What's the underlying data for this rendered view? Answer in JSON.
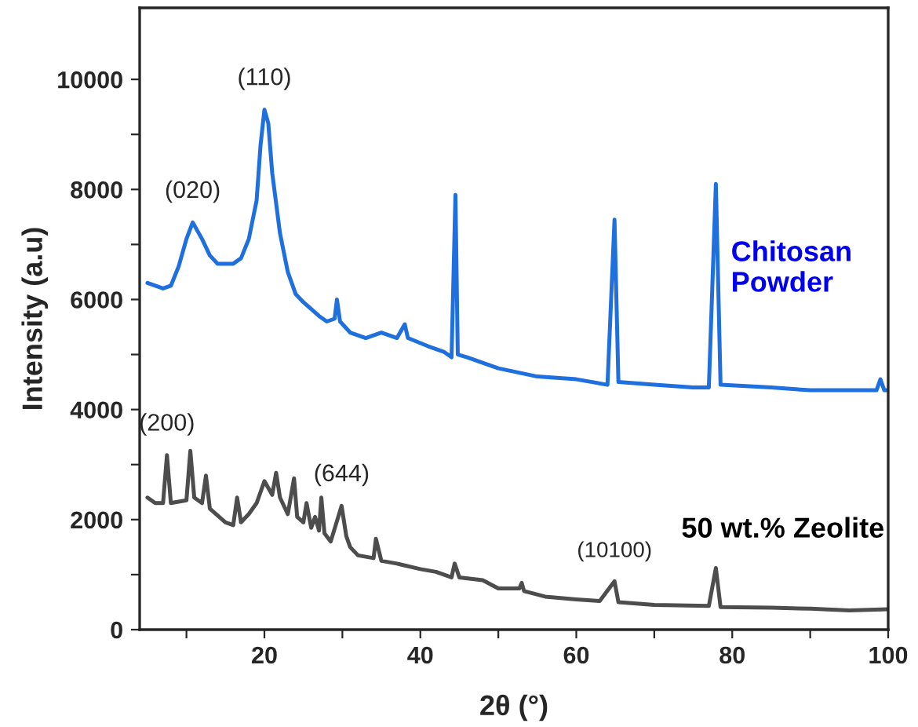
{
  "chart_data": {
    "type": "line",
    "xlabel": "2θ (°)",
    "ylabel": "Intensity (a.u)",
    "xlim": [
      4,
      100
    ],
    "ylim": [
      0,
      11300
    ],
    "xticks": [
      {
        "value": 10,
        "label": null
      },
      20,
      {
        "value": 30,
        "label": null
      },
      40,
      {
        "value": 50,
        "label": null
      },
      60,
      {
        "value": 70,
        "label": null
      },
      80,
      {
        "value": 90,
        "label": null
      },
      100
    ],
    "yticks": [
      0,
      {
        "value": 1000,
        "label": null
      },
      2000,
      {
        "value": 3000,
        "label": null
      },
      4000,
      {
        "value": 5000,
        "label": null
      },
      6000,
      {
        "value": 7000,
        "label": null
      },
      8000,
      {
        "value": 9000,
        "label": null
      },
      10000
    ],
    "grid": false,
    "legend": false,
    "marker": "none",
    "line_style": "solid",
    "series": [
      {
        "name": "Chitosan Powder",
        "color": "#1f6fdf",
        "x": [
          5,
          7,
          8,
          9,
          10,
          10.8,
          12,
          13,
          14,
          16,
          17,
          18,
          19,
          19.5,
          20,
          20.5,
          21,
          22,
          23,
          24,
          25,
          27,
          28,
          29,
          29.3,
          29.7,
          31,
          33,
          35,
          37,
          38,
          38.4,
          41,
          43,
          44,
          44.5,
          44.8,
          46,
          50,
          55,
          60,
          64,
          64.9,
          65.4,
          70,
          75,
          77,
          77.9,
          78.5,
          85,
          90,
          95,
          98.5,
          99,
          99.5,
          100
        ],
        "values": [
          6300,
          6200,
          6250,
          6600,
          7100,
          7400,
          7100,
          6800,
          6650,
          6650,
          6750,
          7100,
          7800,
          8800,
          9450,
          9200,
          8300,
          7200,
          6500,
          6100,
          5950,
          5700,
          5600,
          5650,
          6000,
          5600,
          5400,
          5300,
          5400,
          5300,
          5550,
          5300,
          5150,
          5050,
          4950,
          7900,
          5000,
          4950,
          4750,
          4600,
          4550,
          4450,
          7450,
          4500,
          4450,
          4400,
          4400,
          8100,
          4450,
          4400,
          4350,
          4350,
          4350,
          4550,
          4350,
          4350
        ]
      },
      {
        "name": "50 wt.% Zeolite",
        "color": "#4d4d4d",
        "x": [
          5,
          6,
          7,
          7.5,
          8,
          10,
          10.5,
          11,
          12,
          12.5,
          13,
          15,
          16,
          16.5,
          17,
          18,
          19,
          20,
          21,
          21.5,
          22,
          23,
          23.8,
          24.2,
          25,
          25.4,
          26,
          26.5,
          27,
          27.3,
          27.7,
          28.5,
          29.9,
          30.5,
          31,
          32,
          34,
          34.3,
          35,
          37,
          40,
          42,
          44,
          44.4,
          45,
          48,
          50,
          52.7,
          53,
          53.3,
          56,
          60,
          63,
          64.9,
          65.4,
          70,
          77,
          77.9,
          78.5,
          85,
          90,
          95,
          100
        ],
        "values": [
          2400,
          2300,
          2300,
          3170,
          2300,
          2350,
          3250,
          2400,
          2300,
          2800,
          2200,
          1950,
          1900,
          2400,
          1950,
          2100,
          2300,
          2700,
          2450,
          2850,
          2400,
          2100,
          2750,
          2050,
          1950,
          2300,
          1850,
          2050,
          1800,
          2400,
          1750,
          1600,
          2250,
          1700,
          1500,
          1350,
          1300,
          1650,
          1250,
          1200,
          1100,
          1050,
          950,
          1200,
          950,
          900,
          750,
          750,
          850,
          700,
          600,
          550,
          520,
          880,
          500,
          450,
          430,
          1120,
          410,
          400,
          380,
          350,
          370
        ]
      }
    ],
    "annotations": [
      {
        "text": "(020)",
        "x": 10.8,
        "y": 7400
      },
      {
        "text": "(110)",
        "x": 20,
        "y": 9450
      },
      {
        "text": "(200)",
        "x": 7.5,
        "y": 3170
      },
      {
        "text": "(644)",
        "x": 29.9,
        "y": 2250
      },
      {
        "text": "(10100)",
        "x": 64.9,
        "y": 880
      }
    ]
  }
}
